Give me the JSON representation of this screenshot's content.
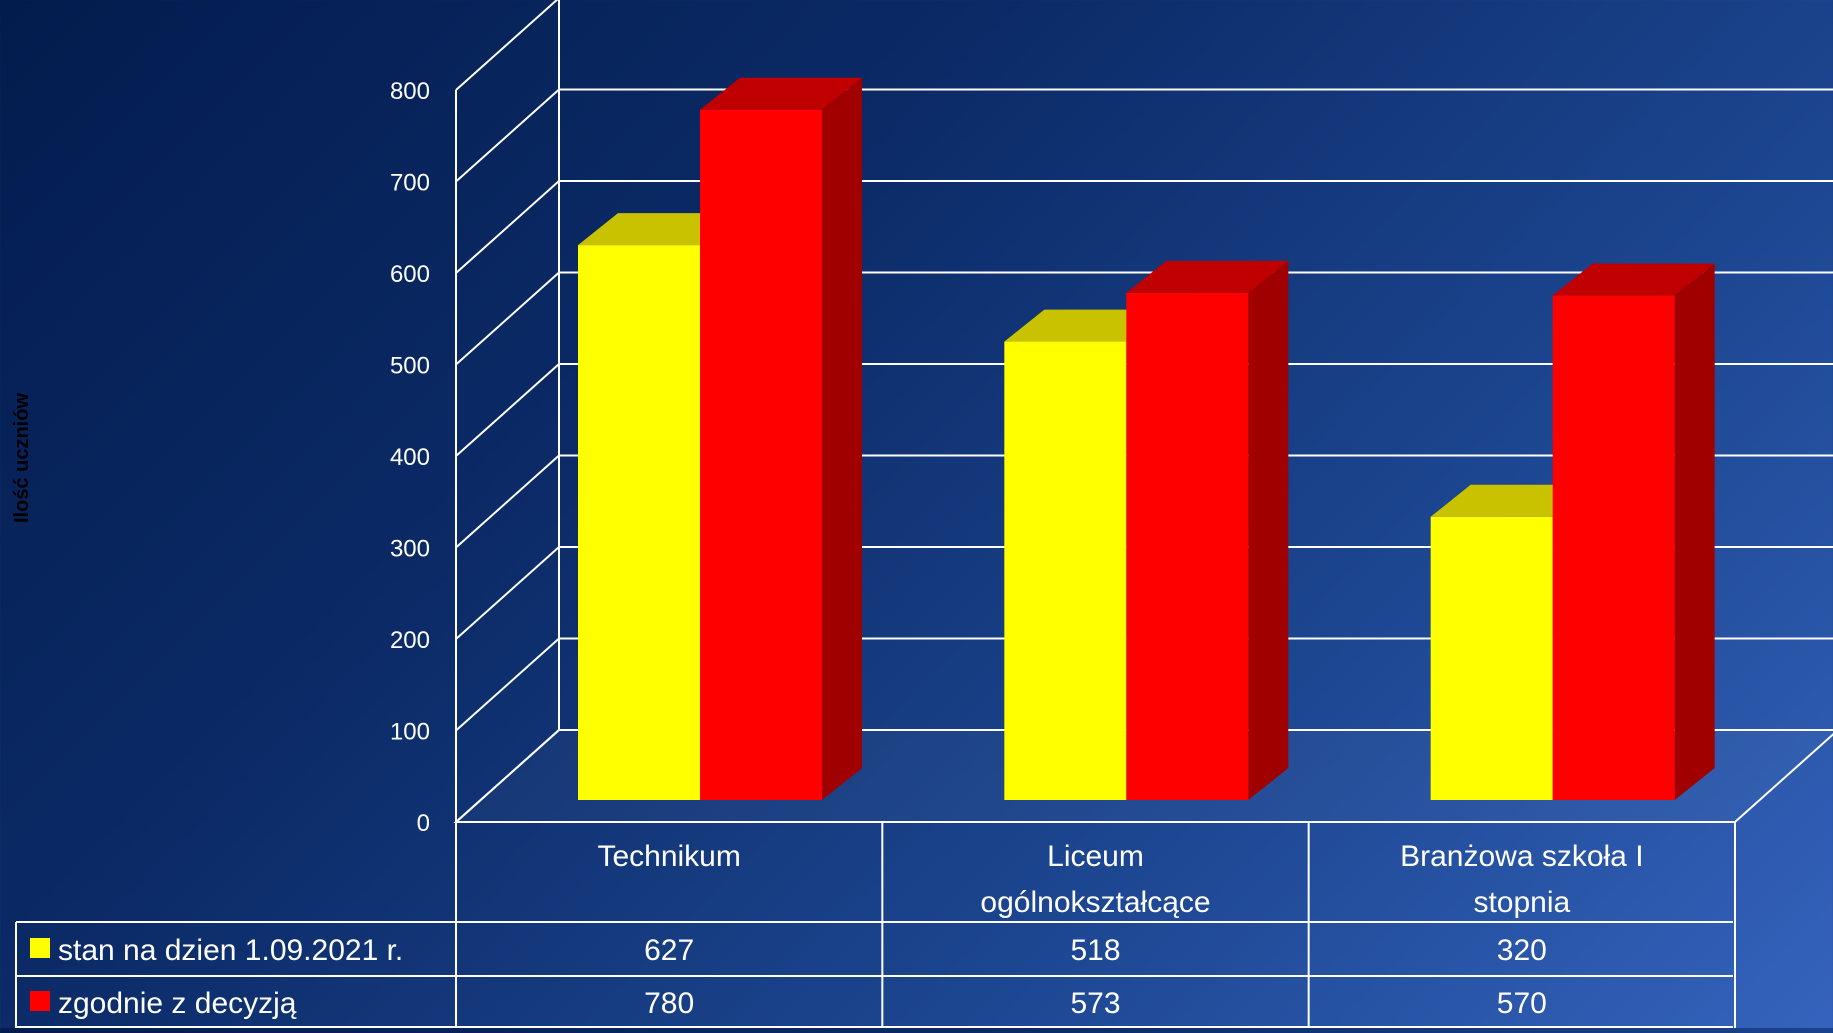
{
  "chart_data": {
    "type": "bar",
    "categories": [
      "Technikum",
      "Liceum\nogólnokształcące",
      "Branżowa szkoła I\nstopnia"
    ],
    "series": [
      {
        "name": "stan na dzien 1.09.2021 r.",
        "values": [
          627,
          518,
          320
        ],
        "color": "#ffff00",
        "top_color": "#c8c200"
      },
      {
        "name": "zgodnie z decyzją",
        "values": [
          780,
          573,
          570
        ],
        "color": "#ff0000",
        "side_color": "#a00000",
        "top_color": "#c00000"
      }
    ],
    "ylabel": "Ilość uczniów",
    "ylim": [
      0,
      800
    ],
    "yticks": [
      0,
      100,
      200,
      300,
      400,
      500,
      600,
      700,
      800
    ],
    "grid": true,
    "legend": "data-table"
  }
}
